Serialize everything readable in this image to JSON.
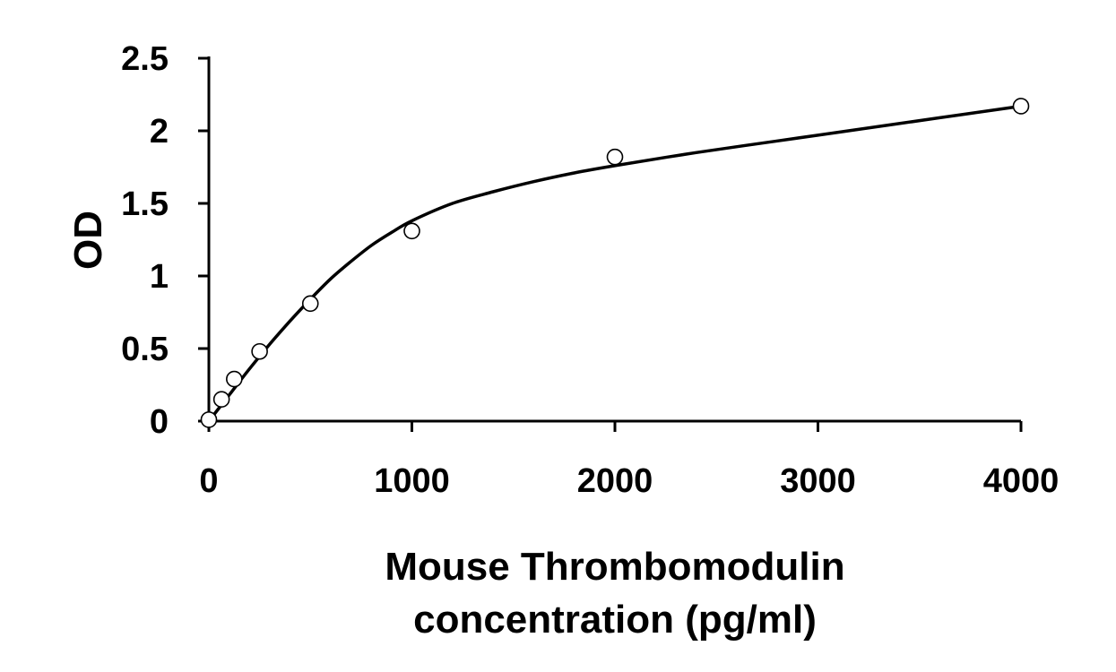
{
  "chart_data": {
    "type": "scatter",
    "title": "",
    "xlabel": [
      "Mouse Thrombomodulin",
      "concentration (pg/ml)"
    ],
    "ylabel": "OD",
    "xlim": [
      0,
      4000
    ],
    "ylim": [
      0,
      2.5
    ],
    "x_ticks": [
      "0",
      "1000",
      "2000",
      "3000",
      "4000"
    ],
    "y_ticks": [
      "0",
      "0.5",
      "1",
      "1.5",
      "2",
      "2.5"
    ],
    "grid": false,
    "legend": "none",
    "series": [
      {
        "marker": "open-circle",
        "points": [
          {
            "x": 0,
            "y": 0.01
          },
          {
            "x": 62.5,
            "y": 0.15
          },
          {
            "x": 125,
            "y": 0.29
          },
          {
            "x": 250,
            "y": 0.48
          },
          {
            "x": 500,
            "y": 0.81
          },
          {
            "x": 1000,
            "y": 1.31
          },
          {
            "x": 2000,
            "y": 1.82
          },
          {
            "x": 4000,
            "y": 2.17
          }
        ]
      }
    ],
    "fit_curve": [
      {
        "x": 0,
        "y": 0.0
      },
      {
        "x": 100,
        "y": 0.18
      },
      {
        "x": 200,
        "y": 0.36
      },
      {
        "x": 300,
        "y": 0.53
      },
      {
        "x": 400,
        "y": 0.69
      },
      {
        "x": 500,
        "y": 0.84
      },
      {
        "x": 600,
        "y": 0.98
      },
      {
        "x": 700,
        "y": 1.1
      },
      {
        "x": 800,
        "y": 1.21
      },
      {
        "x": 900,
        "y": 1.3
      },
      {
        "x": 1000,
        "y": 1.38
      },
      {
        "x": 1200,
        "y": 1.5
      },
      {
        "x": 1400,
        "y": 1.58
      },
      {
        "x": 1600,
        "y": 1.65
      },
      {
        "x": 1800,
        "y": 1.71
      },
      {
        "x": 2000,
        "y": 1.76
      },
      {
        "x": 2400,
        "y": 1.85
      },
      {
        "x": 2800,
        "y": 1.93
      },
      {
        "x": 3200,
        "y": 2.01
      },
      {
        "x": 3600,
        "y": 2.09
      },
      {
        "x": 4000,
        "y": 2.17
      }
    ]
  }
}
